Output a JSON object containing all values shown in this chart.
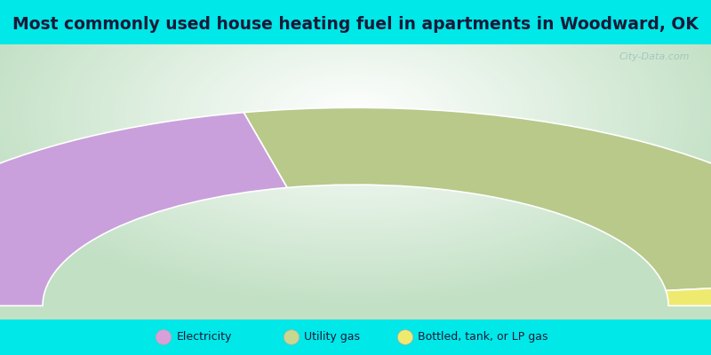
{
  "title": "Most commonly used house heating fuel in apartments in Woodward, OK",
  "title_fontsize": 13.5,
  "segments": [
    {
      "label": "Electricity",
      "value": 43,
      "color": "#c9a0dc"
    },
    {
      "label": "Utility gas",
      "value": 53,
      "color": "#b8c98a"
    },
    {
      "label": "Bottled, tank, or LP gas",
      "value": 4,
      "color": "#eeea70"
    }
  ],
  "legend_colors": [
    "#d8a0d8",
    "#c8d890",
    "#eeea70"
  ],
  "cyan": "#00e8e8",
  "watermark": "City-Data.com"
}
